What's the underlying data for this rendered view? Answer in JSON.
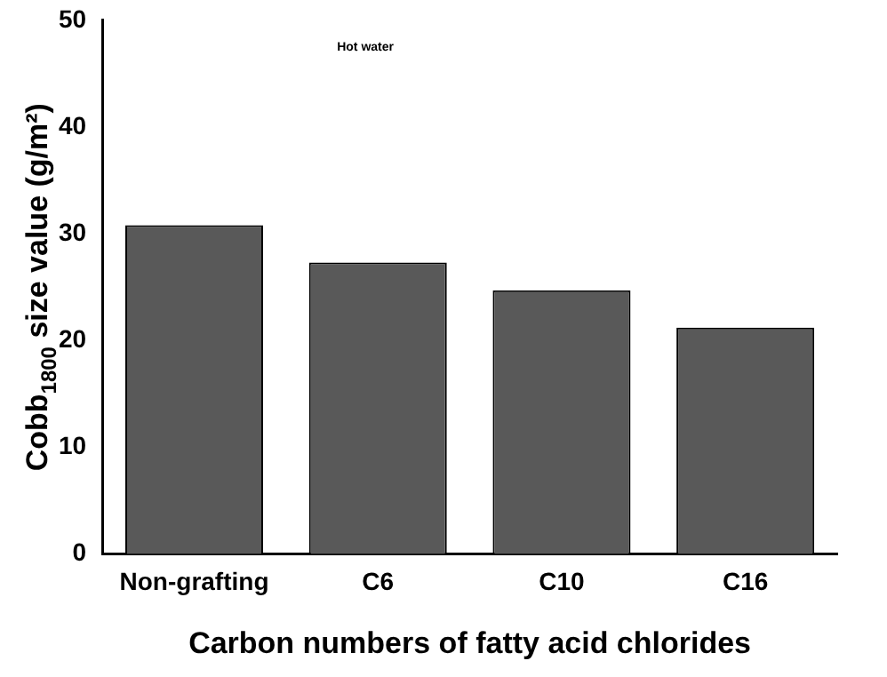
{
  "chart_data": {
    "type": "bar",
    "xlabel": "Carbon numbers of fatty acid chlorides",
    "ylabel": "Cobb$_{1800}$ size value (g/m²)",
    "categories": [
      "Non-grafting",
      "C6",
      "C10",
      "C16"
    ],
    "values": [
      30.8,
      27.3,
      24.7,
      21.2
    ],
    "color": "#595959",
    "ylim": [
      0,
      50
    ],
    "yticks": [
      0,
      10,
      20,
      30,
      40,
      50
    ],
    "grid": false,
    "legend": false,
    "annotations": [
      "Hot water"
    ]
  }
}
